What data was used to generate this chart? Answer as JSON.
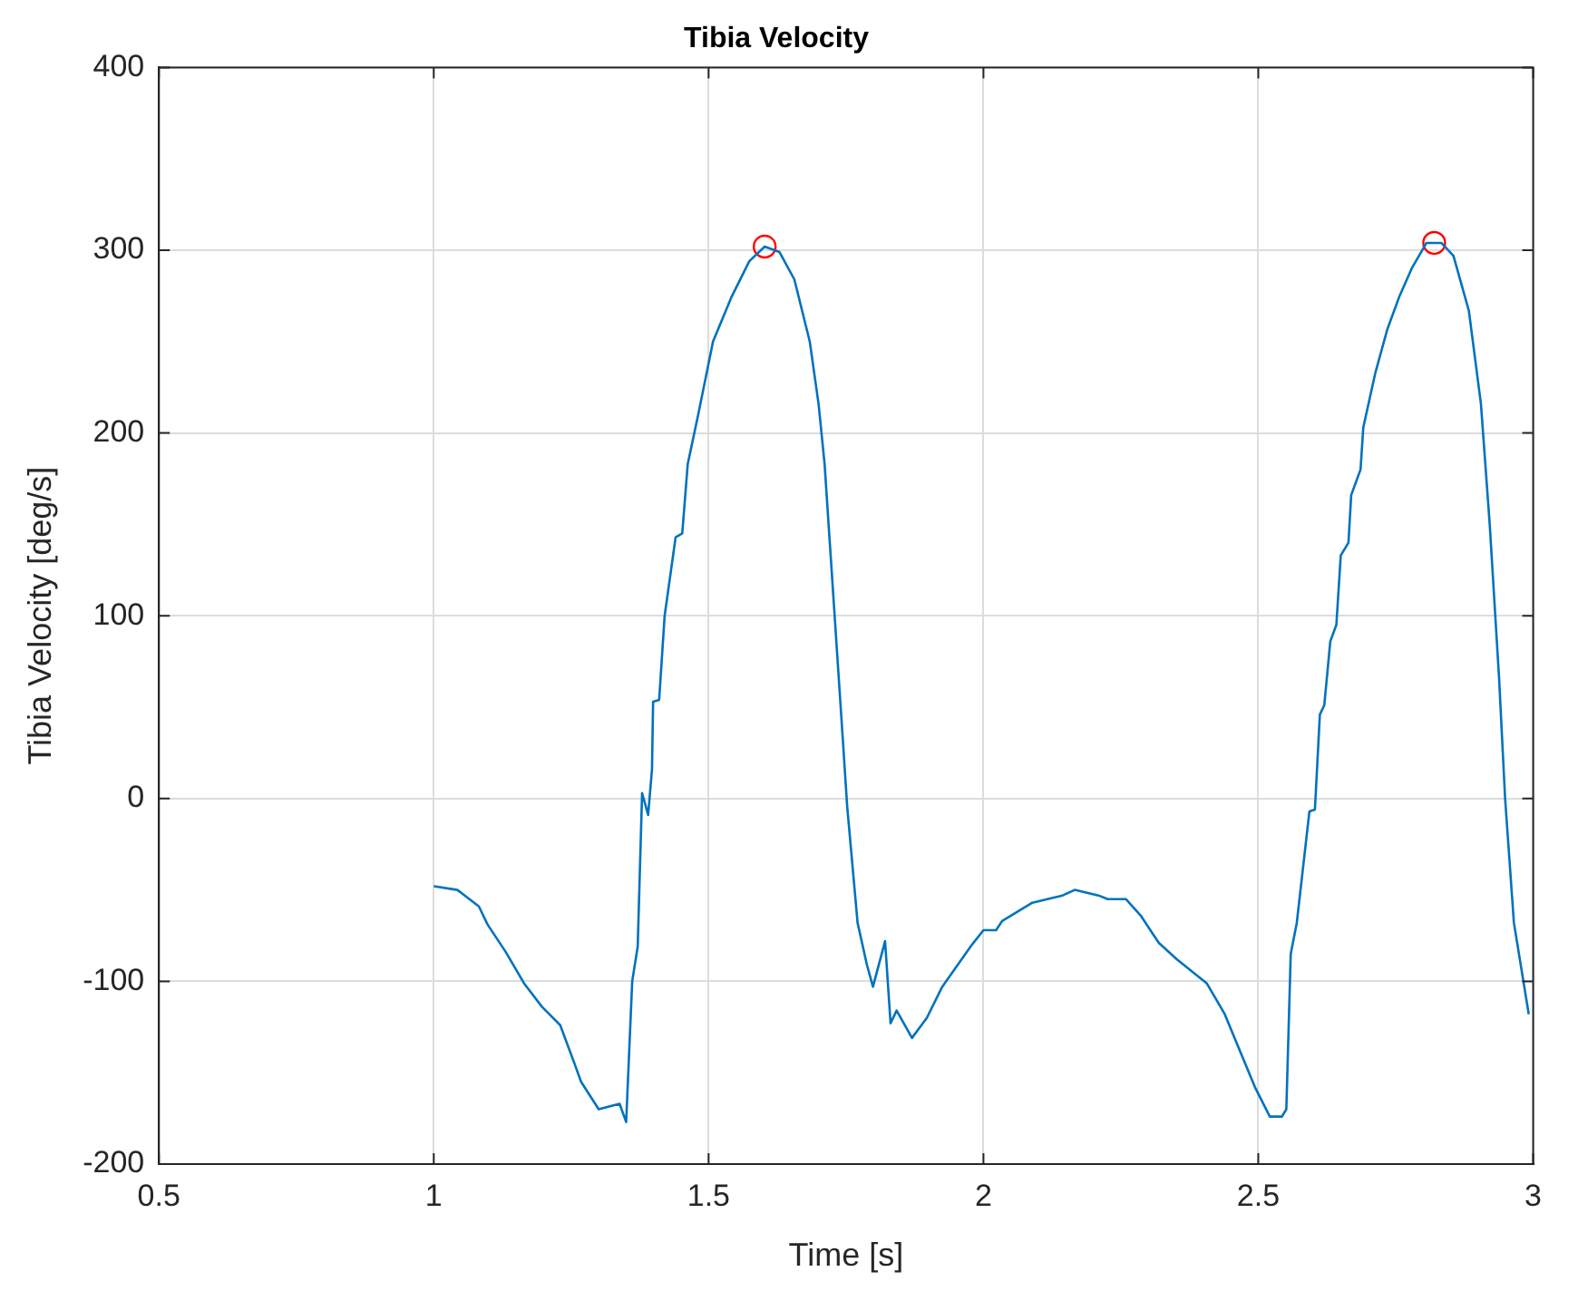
{
  "chart_data": {
    "type": "line",
    "title": "Tibia Velocity",
    "xlabel": "Time [s]",
    "ylabel": "Tibia Velocity [deg/s]",
    "xlim": [
      0.5,
      3
    ],
    "xticks": [
      0.5,
      1,
      1.5,
      2,
      2.5,
      3
    ],
    "ylim": [
      -200,
      400
    ],
    "yticks": [
      -200,
      -100,
      0,
      100,
      200,
      300,
      400
    ],
    "grid": true,
    "legend": false,
    "series": [
      {
        "color": "#0072bd",
        "marker": "none",
        "x": [
          1.0,
          1.043,
          1.082,
          1.098,
          1.131,
          1.164,
          1.197,
          1.23,
          1.256,
          1.268,
          1.3,
          1.338,
          1.35,
          1.361,
          1.371,
          1.379,
          1.39,
          1.397,
          1.399,
          1.41,
          1.42,
          1.44,
          1.452,
          1.462,
          1.481,
          1.508,
          1.541,
          1.574,
          1.602,
          1.629,
          1.656,
          1.684,
          1.7,
          1.711,
          1.722,
          1.733,
          1.744,
          1.752,
          1.771,
          1.788,
          1.799,
          1.821,
          1.831,
          1.842,
          1.87,
          1.897,
          1.925,
          1.979,
          2.0,
          2.023,
          2.034,
          2.089,
          2.144,
          2.166,
          2.209,
          2.226,
          2.259,
          2.286,
          2.319,
          2.352,
          2.406,
          2.439,
          2.461,
          2.494,
          2.521,
          2.543,
          2.551,
          2.559,
          2.57,
          2.593,
          2.603,
          2.612,
          2.62,
          2.631,
          2.642,
          2.65,
          2.664,
          2.669,
          2.686,
          2.691,
          2.713,
          2.735,
          2.757,
          2.779,
          2.806,
          2.833,
          2.855,
          2.883,
          2.905,
          2.921,
          2.938,
          2.949,
          2.965,
          2.992
        ],
        "values": [
          -48,
          -50,
          -59,
          -69,
          -84,
          -101,
          -114,
          -124,
          -145,
          -155,
          -170,
          -167,
          -177,
          -100,
          -81,
          3,
          -9,
          16,
          53,
          54,
          100,
          143,
          145,
          183,
          210,
          250,
          274,
          294,
          302,
          299,
          284,
          250,
          216,
          183,
          133,
          83,
          33,
          -4,
          -68,
          -91,
          -103,
          -78,
          -123,
          -116,
          -131,
          -120,
          -103,
          -80,
          -72,
          -72,
          -67,
          -57,
          -53,
          -50,
          -53,
          -55,
          -55,
          -64,
          -79,
          -88,
          -101,
          -118,
          -134,
          -158,
          -174,
          -174,
          -170,
          -85,
          -68,
          -7,
          -6,
          46,
          51,
          86,
          95,
          133,
          140,
          166,
          180,
          203,
          233,
          257,
          275,
          290,
          304,
          304,
          297,
          267,
          216,
          150,
          66,
          0,
          -68,
          -118
        ]
      },
      {
        "type": "scatter",
        "color": "#ff0000",
        "marker": "circle",
        "x": [
          1.602,
          2.82
        ],
        "values": [
          302,
          304
        ]
      }
    ]
  }
}
